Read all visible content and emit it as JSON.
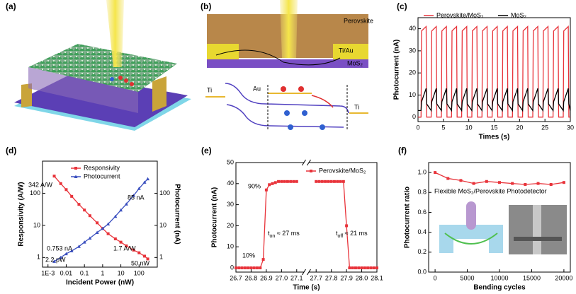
{
  "panel_labels": [
    "(a)",
    "(b)",
    "(c)",
    "(d)",
    "(e)",
    "(f)"
  ],
  "schematic_b": {
    "labels": [
      "Perovskite",
      "Ti/Au",
      "MoS₂",
      "Ti",
      "Au",
      "Ti"
    ]
  },
  "chart_data": [
    {
      "type": "line",
      "xlabel": "Times (s)",
      "ylabel": "Photocurrent (nA)",
      "x": [
        0,
        0.6,
        0.7,
        1.6,
        1.7,
        2.6,
        2.7,
        3.6,
        3.7,
        4.6,
        4.7,
        5.6,
        5.7,
        6.6,
        6.7,
        7.6,
        7.7,
        8.6,
        8.7,
        9.6,
        9.7,
        10.6,
        10.7,
        11.6,
        11.7,
        12.6,
        12.7,
        13.6,
        13.7,
        14.6,
        14.7,
        15.6,
        15.7,
        16.6,
        16.7,
        17.6,
        17.7,
        18.6,
        18.7,
        19.6,
        19.7,
        20.6,
        20.7,
        21.6,
        21.7,
        22.6,
        22.7,
        23.6,
        23.7,
        24.6,
        24.7,
        25.6,
        25.7,
        26.6,
        26.7,
        27.6,
        27.7,
        28.6,
        28.7,
        29.6,
        29.7,
        30
      ],
      "series": [
        {
          "name": "Perovskite/MoS₂",
          "color": "#e8333a",
          "values": [
            0,
            0,
            39,
            41,
            0,
            0,
            39,
            41,
            0,
            0,
            39,
            41,
            0,
            0,
            39,
            41,
            0,
            0,
            39,
            41,
            0,
            0,
            39,
            41,
            0,
            0,
            39,
            41,
            0,
            0,
            39,
            41,
            0,
            0,
            39,
            41,
            0,
            0,
            39,
            41,
            0,
            0,
            39,
            41,
            0,
            0,
            39,
            41,
            0,
            0,
            39,
            41,
            0,
            0,
            39,
            41,
            0,
            0,
            39,
            41,
            0,
            0
          ]
        },
        {
          "name": "MoS₂",
          "color": "#000000",
          "values": [
            3,
            3,
            7,
            13,
            6,
            3,
            7,
            13,
            6,
            3,
            7,
            13,
            6,
            3,
            7,
            13,
            6,
            3,
            7,
            13,
            6,
            3,
            7,
            13,
            6,
            3,
            7,
            13,
            6,
            3,
            7,
            13,
            6,
            3,
            7,
            13,
            6,
            3,
            7,
            13,
            6,
            3,
            7,
            13,
            6,
            3,
            7,
            13,
            6,
            3,
            7,
            13,
            6,
            3,
            7,
            13,
            6,
            3,
            7,
            13,
            6,
            3
          ]
        }
      ],
      "xlim": [
        0,
        30
      ],
      "xticks": [
        0,
        5,
        10,
        15,
        20,
        25,
        30
      ],
      "ylim": [
        -2,
        45
      ],
      "yticks": [
        0,
        10,
        20,
        30,
        40
      ],
      "legend": "top"
    },
    {
      "type": "line",
      "xlabel": "Incident Power (nW)",
      "ylabel": "Responsivity (A/W)",
      "y2label": "Photocurrent (nA)",
      "x": [
        0.0022,
        0.005,
        0.01,
        0.02,
        0.05,
        0.1,
        0.2,
        0.5,
        1,
        2,
        5,
        10,
        20,
        50,
        100,
        200,
        300
      ],
      "series": [
        {
          "name": "Responsivity",
          "color": "#e8333a",
          "marker": "square",
          "values": [
            342,
            200,
            130,
            80,
            45,
            30,
            20,
            12,
            8,
            5.5,
            3.8,
            3,
            2.3,
            1.7,
            1.4,
            1.1,
            0.9
          ]
        },
        {
          "name": "Photocurrent",
          "color": "#3a4fbf",
          "marker": "triangle",
          "axis": "y2",
          "values": [
            0.753,
            1.0,
            1.3,
            1.6,
            2.2,
            3,
            4,
            6,
            8,
            11,
            19,
            30,
            46,
            85,
            140,
            220,
            280
          ]
        }
      ],
      "xlog": true,
      "ylog": true,
      "y2log": true,
      "xlim": [
        0.0005,
        1000
      ],
      "xticks": [
        {
          "value": 0.001,
          "label": "1E-3"
        },
        0.01,
        0.1,
        1,
        10,
        100
      ],
      "ylim": [
        0.5,
        1000
      ],
      "yticks": [
        1,
        10,
        100
      ],
      "y2lim": [
        0.5,
        1000
      ],
      "y2ticks": [
        1,
        10,
        100
      ],
      "legend": "upper center",
      "annotations": [
        "342 A/W",
        "0.753 nA",
        "2.2 pW",
        "85 nA",
        "1.7 A/W",
        "50 nW"
      ]
    },
    {
      "type": "line",
      "xlabel": "Time (s)",
      "ylabel": "Photocurrent (nA)",
      "x": [
        26.7,
        26.72,
        26.74,
        26.76,
        26.78,
        26.8,
        26.82,
        26.84,
        26.86,
        26.88,
        26.9,
        26.92,
        26.94,
        26.96,
        26.98,
        27,
        27.02,
        27.04,
        27.06,
        27.08,
        27.1,
        27.4,
        27.7,
        27.72,
        27.74,
        27.76,
        27.78,
        27.8,
        27.82,
        27.84,
        27.86,
        27.88,
        27.9,
        27.92,
        27.94,
        27.96,
        27.98,
        28,
        28.02,
        28.04,
        28.06,
        28.08,
        28.1
      ],
      "series": [
        {
          "name": "Perovskite/MoS₂",
          "color": "#e8333a",
          "marker": "square",
          "values": [
            0,
            0,
            0,
            0,
            0,
            0,
            0,
            0,
            0,
            4,
            37,
            39.5,
            40,
            40.5,
            41,
            41,
            41,
            41,
            41,
            41,
            41,
            null,
            41,
            41,
            41,
            41,
            41,
            41,
            41,
            41,
            41,
            41,
            20,
            0,
            0,
            0,
            0,
            0,
            0,
            0,
            0,
            0,
            0
          ]
        }
      ],
      "xbreak": [
        27.15,
        27.65
      ],
      "xlim": [
        26.7,
        28.1
      ],
      "xticks": [
        26.7,
        26.8,
        26.9,
        {
          "value": 27,
          "label": "27.0"
        },
        27.1,
        27.7,
        27.8,
        27.9,
        {
          "value": 28,
          "label": "28.0"
        },
        28.1
      ],
      "ylim": [
        -2,
        50
      ],
      "yticks": [
        0,
        10,
        20,
        30,
        40,
        50
      ],
      "legend": "upper right",
      "annotations": [
        "90%",
        "10%",
        [
          "t",
          "on",
          " ≈ 27 ms"
        ],
        [
          "t",
          "off",
          " ≈ 21 ms"
        ]
      ]
    },
    {
      "type": "line",
      "xlabel": "Bending cycles",
      "ylabel": "Photocurrent ratio",
      "x": [
        0,
        2000,
        4000,
        6000,
        8000,
        10000,
        12000,
        14000,
        16000,
        18000,
        20000
      ],
      "series": [
        {
          "color": "#e8333a",
          "marker": "square",
          "values": [
            1.0,
            0.94,
            0.92,
            0.89,
            0.91,
            0.9,
            0.89,
            0.88,
            0.89,
            0.88,
            0.9
          ]
        }
      ],
      "xlim": [
        -1000,
        21000
      ],
      "xticks": [
        0,
        5000,
        10000,
        15000,
        20000
      ],
      "ylim": [
        0,
        1.1
      ],
      "yticks": [
        {
          "value": 0,
          "label": "0.0"
        },
        0.2,
        0.4,
        0.6,
        0.8,
        {
          "value": 1,
          "label": "1.0"
        }
      ],
      "annotations": [
        "Flexible MoS₂/Perovskite Photodetector"
      ]
    }
  ]
}
